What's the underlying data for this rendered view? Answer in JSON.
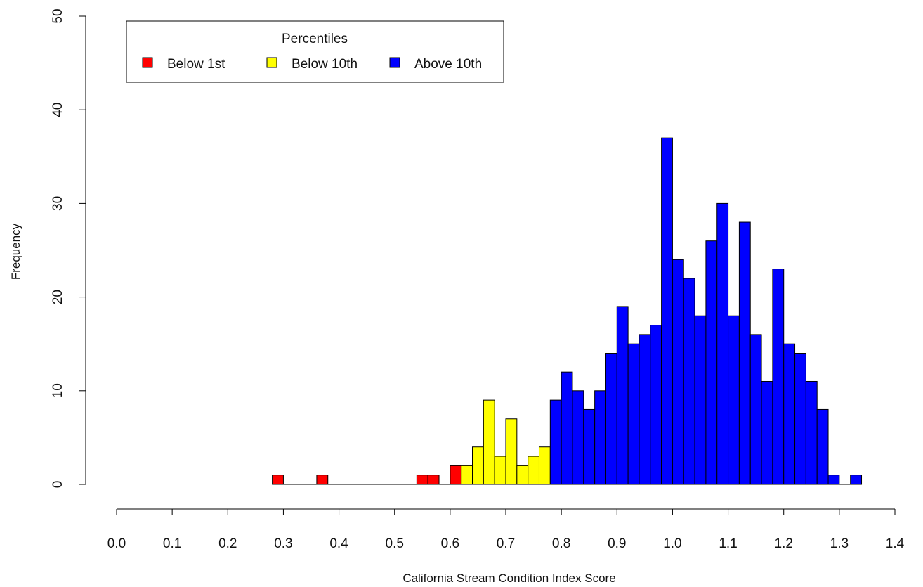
{
  "chart_data": {
    "type": "bar",
    "title": "",
    "xlabel": "California Stream Condition Index Score",
    "ylabel": "Frequency",
    "xlim": [
      0.0,
      1.4
    ],
    "ylim": [
      0,
      50
    ],
    "bin_width": 0.02,
    "x_ticks": [
      "0.0",
      "0.1",
      "0.2",
      "0.3",
      "0.4",
      "0.5",
      "0.6",
      "0.7",
      "0.8",
      "0.9",
      "1.0",
      "1.1",
      "1.2",
      "1.3",
      "1.4"
    ],
    "y_ticks": [
      "0",
      "10",
      "20",
      "30",
      "40",
      "50"
    ],
    "grid": false,
    "legend": {
      "title": "Percentiles",
      "placement": "top-left",
      "entries": [
        {
          "label": "Below 1st",
          "color": "#ff0000"
        },
        {
          "label": "Below 10th",
          "color": "#ffff00"
        },
        {
          "label": "Above 10th",
          "color": "#0000ff"
        }
      ]
    },
    "bins": [
      {
        "x": 0.28,
        "value": 1,
        "group": 0
      },
      {
        "x": 0.36,
        "value": 1,
        "group": 0
      },
      {
        "x": 0.54,
        "value": 1,
        "group": 0
      },
      {
        "x": 0.56,
        "value": 1,
        "group": 0
      },
      {
        "x": 0.6,
        "value": 2,
        "group": 0
      },
      {
        "x": 0.62,
        "value": 2,
        "group": 1
      },
      {
        "x": 0.64,
        "value": 4,
        "group": 1
      },
      {
        "x": 0.66,
        "value": 9,
        "group": 1
      },
      {
        "x": 0.68,
        "value": 3,
        "group": 1
      },
      {
        "x": 0.7,
        "value": 7,
        "group": 1
      },
      {
        "x": 0.72,
        "value": 2,
        "group": 1
      },
      {
        "x": 0.74,
        "value": 3,
        "group": 1
      },
      {
        "x": 0.76,
        "value": 4,
        "group": 1
      },
      {
        "x": 0.78,
        "value": 9,
        "group": 2
      },
      {
        "x": 0.8,
        "value": 12,
        "group": 2
      },
      {
        "x": 0.82,
        "value": 10,
        "group": 2
      },
      {
        "x": 0.84,
        "value": 8,
        "group": 2
      },
      {
        "x": 0.86,
        "value": 10,
        "group": 2
      },
      {
        "x": 0.88,
        "value": 14,
        "group": 2
      },
      {
        "x": 0.9,
        "value": 19,
        "group": 2
      },
      {
        "x": 0.92,
        "value": 15,
        "group": 2
      },
      {
        "x": 0.94,
        "value": 16,
        "group": 2
      },
      {
        "x": 0.96,
        "value": 17,
        "group": 2
      },
      {
        "x": 0.98,
        "value": 37,
        "group": 2
      },
      {
        "x": 1.0,
        "value": 24,
        "group": 2
      },
      {
        "x": 1.02,
        "value": 22,
        "group": 2
      },
      {
        "x": 1.04,
        "value": 18,
        "group": 2
      },
      {
        "x": 1.06,
        "value": 26,
        "group": 2
      },
      {
        "x": 1.08,
        "value": 30,
        "group": 2
      },
      {
        "x": 1.1,
        "value": 18,
        "group": 2
      },
      {
        "x": 1.12,
        "value": 28,
        "group": 2
      },
      {
        "x": 1.14,
        "value": 16,
        "group": 2
      },
      {
        "x": 1.16,
        "value": 11,
        "group": 2
      },
      {
        "x": 1.18,
        "value": 23,
        "group": 2
      },
      {
        "x": 1.2,
        "value": 15,
        "group": 2
      },
      {
        "x": 1.22,
        "value": 14,
        "group": 2
      },
      {
        "x": 1.24,
        "value": 11,
        "group": 2
      },
      {
        "x": 1.26,
        "value": 8,
        "group": 2
      },
      {
        "x": 1.28,
        "value": 1,
        "group": 2
      },
      {
        "x": 1.32,
        "value": 1,
        "group": 2
      }
    ]
  }
}
